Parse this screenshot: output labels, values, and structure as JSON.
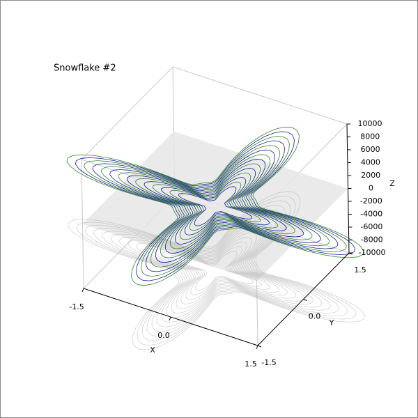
{
  "chart_data": {
    "type": "contour3d",
    "title": "Snowflake #2",
    "xlabel": "X",
    "ylabel": "Y",
    "zlabel": "Z",
    "xlim": [
      -1.5,
      1.5
    ],
    "xticks": [
      -1.5,
      {
        "value": 0,
        "label": "0.0"
      },
      1.5
    ],
    "ylim": [
      -1.5,
      1.5
    ],
    "yticks": [
      -1.5,
      {
        "value": 0,
        "label": "0.0"
      },
      1.5
    ],
    "zlim": [
      -10000,
      10000
    ],
    "zticks": [
      -10000,
      -8000,
      -6000,
      -4000,
      -2000,
      0,
      2000,
      4000,
      6000,
      8000,
      10000
    ],
    "colors": [
      "#00008b",
      "#1a7a1a"
    ],
    "grid": false
  }
}
